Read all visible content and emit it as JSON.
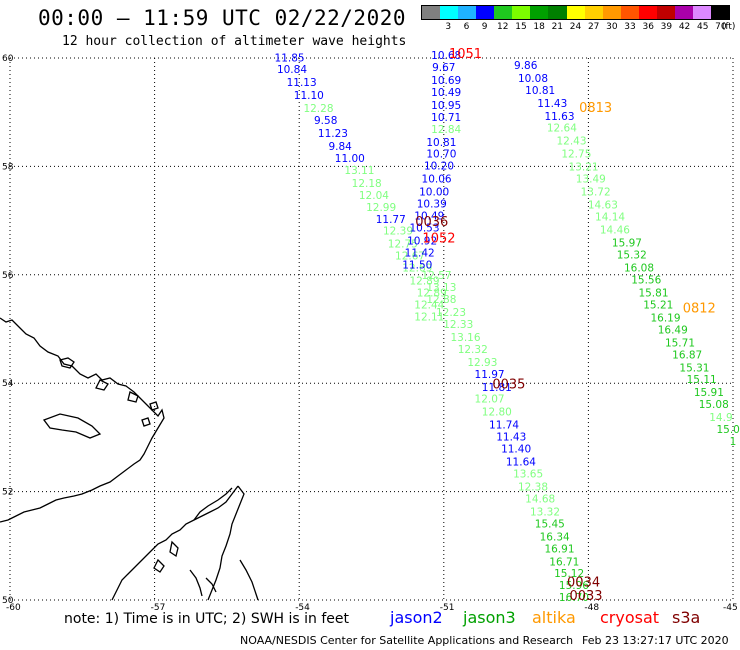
{
  "header": {
    "title": "00:00 – 11:59 UTC 02/22/2020",
    "subtitle": "12 hour collection of altimeter wave heights"
  },
  "legend": {
    "unit": "(ft)",
    "entries": [
      {
        "label": "",
        "color": "#808080"
      },
      {
        "label": "3",
        "color": "#00ffff"
      },
      {
        "label": "6",
        "color": "#1fb2ff"
      },
      {
        "label": "9",
        "color": "#0000ff"
      },
      {
        "label": "12",
        "color": "#1fc81f"
      },
      {
        "label": "15",
        "color": "#7cfc00"
      },
      {
        "label": "18",
        "color": "#00a000"
      },
      {
        "label": "21",
        "color": "#008000"
      },
      {
        "label": "24",
        "color": "#ffff00"
      },
      {
        "label": "27",
        "color": "#ffd000"
      },
      {
        "label": "30",
        "color": "#ff9900"
      },
      {
        "label": "33",
        "color": "#ff5500"
      },
      {
        "label": "36",
        "color": "#ff0000"
      },
      {
        "label": "39",
        "color": "#c00000"
      },
      {
        "label": "42",
        "color": "#aa00aa"
      },
      {
        "label": "45",
        "color": "#dd88ff"
      },
      {
        "label": "70",
        "color": "#000000"
      }
    ]
  },
  "map": {
    "lat_labels": [
      {
        "value": 60,
        "text": "60"
      },
      {
        "value": 58,
        "text": "58"
      },
      {
        "value": 56,
        "text": "56"
      },
      {
        "value": 54,
        "text": "54"
      },
      {
        "value": 52,
        "text": "52"
      },
      {
        "value": 50,
        "text": "50"
      }
    ],
    "lon_labels": [
      {
        "value": -60,
        "text": "-60"
      },
      {
        "value": -57,
        "text": "-57"
      },
      {
        "value": -54,
        "text": "-54"
      },
      {
        "value": -51,
        "text": "-51"
      },
      {
        "value": -48,
        "text": "-48"
      },
      {
        "value": -45,
        "text": "-45"
      }
    ],
    "time_labels": [
      {
        "text": "1051",
        "lat": 60.0,
        "lon": -50.55,
        "color": "#ff0000"
      },
      {
        "text": "0813",
        "lat": 59.0,
        "lon": -47.85,
        "color": "#ff9900"
      },
      {
        "text": "0036",
        "lat": 56.9,
        "lon": -51.25,
        "color": "#800000"
      },
      {
        "text": "1052",
        "lat": 56.6,
        "lon": -51.1,
        "color": "#ff0000"
      },
      {
        "text": "0812",
        "lat": 55.3,
        "lon": -45.7,
        "color": "#ff9900"
      },
      {
        "text": "0035",
        "lat": 53.9,
        "lon": -49.65,
        "color": "#800000"
      },
      {
        "text": "0034",
        "lat": 50.25,
        "lon": -48.1,
        "color": "#800000"
      },
      {
        "text": "0033",
        "lat": 50.0,
        "lon": -48.05,
        "color": "#800000"
      }
    ],
    "tracks": [
      {
        "name": "track-1",
        "points": [
          {
            "lat": 59.94,
            "lon": -54.2,
            "v": "11.85",
            "c": "#0000ff"
          },
          {
            "lat": 59.72,
            "lon": -54.15,
            "v": "10.84",
            "c": "#0000ff"
          },
          {
            "lat": 59.48,
            "lon": -53.95,
            "v": "11.13",
            "c": "#0000ff"
          },
          {
            "lat": 59.24,
            "lon": -53.8,
            "v": "11.10",
            "c": "#0000ff"
          },
          {
            "lat": 59.0,
            "lon": -53.6,
            "v": "12.28",
            "c": "#80ff80"
          },
          {
            "lat": 58.78,
            "lon": -53.45,
            "v": "9.58",
            "c": "#0000ff"
          },
          {
            "lat": 58.54,
            "lon": -53.3,
            "v": "11.23",
            "c": "#0000ff"
          },
          {
            "lat": 58.3,
            "lon": -53.15,
            "v": "9.84",
            "c": "#0000ff"
          },
          {
            "lat": 58.08,
            "lon": -52.95,
            "v": "11.00",
            "c": "#0000ff"
          },
          {
            "lat": 57.86,
            "lon": -52.75,
            "v": "13.11",
            "c": "#80ff80"
          },
          {
            "lat": 57.62,
            "lon": -52.6,
            "v": "12.18",
            "c": "#80ff80"
          },
          {
            "lat": 57.4,
            "lon": -52.45,
            "v": "12.04",
            "c": "#80ff80"
          },
          {
            "lat": 57.18,
            "lon": -52.3,
            "v": "12.99",
            "c": "#80ff80"
          },
          {
            "lat": 56.96,
            "lon": -52.1,
            "v": "11.77",
            "c": "#0000ff"
          },
          {
            "lat": 56.74,
            "lon": -51.95,
            "v": "12.39",
            "c": "#80ff80"
          },
          {
            "lat": 56.5,
            "lon": -51.85,
            "v": "12.75",
            "c": "#80ff80"
          },
          {
            "lat": 56.28,
            "lon": -51.7,
            "v": "12.67",
            "c": "#80ff80"
          },
          {
            "lat": 56.06,
            "lon": -51.55,
            "v": "12.69",
            "c": "#80ff80"
          },
          {
            "lat": 55.82,
            "lon": -51.4,
            "v": "12.89",
            "c": "#80ff80"
          },
          {
            "lat": 55.6,
            "lon": -51.25,
            "v": "12.89",
            "c": "#80ff80"
          },
          {
            "lat": 55.38,
            "lon": -51.3,
            "v": "12.44",
            "c": "#80ff80"
          },
          {
            "lat": 55.16,
            "lon": -51.3,
            "v": "12.11",
            "c": "#80ff80"
          }
        ]
      },
      {
        "name": "track-2",
        "points": [
          {
            "lat": 59.98,
            "lon": -50.95,
            "v": "10.68",
            "c": "#0000ff"
          },
          {
            "lat": 59.76,
            "lon": -51.0,
            "v": "9.67",
            "c": "#0000ff"
          },
          {
            "lat": 59.52,
            "lon": -50.95,
            "v": "10.69",
            "c": "#0000ff"
          },
          {
            "lat": 59.3,
            "lon": -50.95,
            "v": "10.49",
            "c": "#0000ff"
          },
          {
            "lat": 59.06,
            "lon": -50.95,
            "v": "10.95",
            "c": "#0000ff"
          },
          {
            "lat": 58.84,
            "lon": -50.95,
            "v": "10.71",
            "c": "#0000ff"
          },
          {
            "lat": 58.62,
            "lon": -50.95,
            "v": "12.84",
            "c": "#80ff80"
          },
          {
            "lat": 58.38,
            "lon": -51.05,
            "v": "10.81",
            "c": "#0000ff"
          },
          {
            "lat": 58.16,
            "lon": -51.05,
            "v": "10.70",
            "c": "#0000ff"
          },
          {
            "lat": 57.94,
            "lon": -51.1,
            "v": "10.20",
            "c": "#0000ff"
          },
          {
            "lat": 57.7,
            "lon": -51.15,
            "v": "10.06",
            "c": "#0000ff"
          },
          {
            "lat": 57.46,
            "lon": -51.2,
            "v": "10.00",
            "c": "#0000ff"
          },
          {
            "lat": 57.24,
            "lon": -51.25,
            "v": "10.39",
            "c": "#0000ff"
          },
          {
            "lat": 57.02,
            "lon": -51.3,
            "v": "10.49",
            "c": "#0000ff"
          },
          {
            "lat": 56.8,
            "lon": -51.4,
            "v": "10.53",
            "c": "#0000ff"
          },
          {
            "lat": 56.56,
            "lon": -51.45,
            "v": "10.92",
            "c": "#0000ff"
          },
          {
            "lat": 56.34,
            "lon": -51.5,
            "v": "11.42",
            "c": "#0000ff"
          },
          {
            "lat": 56.12,
            "lon": -51.55,
            "v": "11.50",
            "c": "#0000ff"
          },
          {
            "lat": 55.92,
            "lon": -51.15,
            "v": "12.57",
            "c": "#80ff80"
          },
          {
            "lat": 55.7,
            "lon": -51.05,
            "v": "13.13",
            "c": "#80ff80"
          },
          {
            "lat": 55.48,
            "lon": -51.05,
            "v": "12.88",
            "c": "#80ff80"
          },
          {
            "lat": 55.24,
            "lon": -50.85,
            "v": "12.23",
            "c": "#80ff80"
          },
          {
            "lat": 55.02,
            "lon": -50.7,
            "v": "12.33",
            "c": "#80ff80"
          },
          {
            "lat": 54.78,
            "lon": -50.55,
            "v": "13.16",
            "c": "#80ff80"
          },
          {
            "lat": 54.56,
            "lon": -50.4,
            "v": "12.32",
            "c": "#80ff80"
          },
          {
            "lat": 54.32,
            "lon": -50.2,
            "v": "12.93",
            "c": "#80ff80"
          },
          {
            "lat": 54.1,
            "lon": -50.05,
            "v": "11.97",
            "c": "#0000ff"
          },
          {
            "lat": 53.86,
            "lon": -49.9,
            "v": "11.81",
            "c": "#0000ff"
          },
          {
            "lat": 53.64,
            "lon": -50.05,
            "v": "12.07",
            "c": "#80ff80"
          },
          {
            "lat": 53.4,
            "lon": -49.9,
            "v": "12.80",
            "c": "#80ff80"
          },
          {
            "lat": 53.16,
            "lon": -49.75,
            "v": "11.74",
            "c": "#0000ff"
          },
          {
            "lat": 52.94,
            "lon": -49.6,
            "v": "11.43",
            "c": "#0000ff"
          },
          {
            "lat": 52.72,
            "lon": -49.5,
            "v": "11.40",
            "c": "#0000ff"
          },
          {
            "lat": 52.48,
            "lon": -49.4,
            "v": "11.64",
            "c": "#0000ff"
          },
          {
            "lat": 52.26,
            "lon": -49.25,
            "v": "13.65",
            "c": "#80ff80"
          },
          {
            "lat": 52.02,
            "lon": -49.15,
            "v": "12.38",
            "c": "#80ff80"
          },
          {
            "lat": 51.8,
            "lon": -49.0,
            "v": "14.68",
            "c": "#80ff80"
          },
          {
            "lat": 51.56,
            "lon": -48.9,
            "v": "13.32",
            "c": "#80ff80"
          },
          {
            "lat": 51.34,
            "lon": -48.8,
            "v": "15.45",
            "c": "#1fc81f"
          },
          {
            "lat": 51.1,
            "lon": -48.7,
            "v": "16.34",
            "c": "#1fc81f"
          },
          {
            "lat": 50.88,
            "lon": -48.6,
            "v": "16.91",
            "c": "#1fc81f"
          },
          {
            "lat": 50.64,
            "lon": -48.5,
            "v": "16.71",
            "c": "#1fc81f"
          },
          {
            "lat": 50.42,
            "lon": -48.4,
            "v": "15.12",
            "c": "#1fc81f"
          },
          {
            "lat": 50.2,
            "lon": -48.3,
            "v": "15.96",
            "c": "#1fc81f"
          },
          {
            "lat": 49.98,
            "lon": -48.3,
            "v": "16.70",
            "c": "#1fc81f"
          }
        ]
      },
      {
        "name": "track-3",
        "points": [
          {
            "lat": 59.8,
            "lon": -49.3,
            "v": "9.86",
            "c": "#0000ff"
          },
          {
            "lat": 59.56,
            "lon": -49.15,
            "v": "10.08",
            "c": "#0000ff"
          },
          {
            "lat": 59.34,
            "lon": -49.0,
            "v": "10.81",
            "c": "#0000ff"
          },
          {
            "lat": 59.1,
            "lon": -48.75,
            "v": "11.43",
            "c": "#0000ff"
          },
          {
            "lat": 58.86,
            "lon": -48.6,
            "v": "11.63",
            "c": "#0000ff"
          },
          {
            "lat": 58.64,
            "lon": -48.55,
            "v": "12.64",
            "c": "#80ff80"
          },
          {
            "lat": 58.4,
            "lon": -48.35,
            "v": "12.43",
            "c": "#80ff80"
          },
          {
            "lat": 58.16,
            "lon": -48.25,
            "v": "12.75",
            "c": "#80ff80"
          },
          {
            "lat": 57.92,
            "lon": -48.1,
            "v": "13.21",
            "c": "#80ff80"
          },
          {
            "lat": 57.7,
            "lon": -47.95,
            "v": "13.49",
            "c": "#80ff80"
          },
          {
            "lat": 57.46,
            "lon": -47.85,
            "v": "13.72",
            "c": "#80ff80"
          },
          {
            "lat": 57.22,
            "lon": -47.7,
            "v": "14.63",
            "c": "#80ff80"
          },
          {
            "lat": 57.0,
            "lon": -47.55,
            "v": "14.14",
            "c": "#80ff80"
          },
          {
            "lat": 56.76,
            "lon": -47.45,
            "v": "14.46",
            "c": "#80ff80"
          },
          {
            "lat": 56.52,
            "lon": -47.2,
            "v": "15.97",
            "c": "#1fc81f"
          },
          {
            "lat": 56.3,
            "lon": -47.1,
            "v": "15.32",
            "c": "#1fc81f"
          },
          {
            "lat": 56.06,
            "lon": -46.95,
            "v": "16.08",
            "c": "#1fc81f"
          },
          {
            "lat": 55.84,
            "lon": -46.8,
            "v": "15.56",
            "c": "#1fc81f"
          },
          {
            "lat": 55.6,
            "lon": -46.65,
            "v": "15.81",
            "c": "#1fc81f"
          },
          {
            "lat": 55.38,
            "lon": -46.55,
            "v": "15.21",
            "c": "#1fc81f"
          },
          {
            "lat": 55.14,
            "lon": -46.4,
            "v": "16.19",
            "c": "#1fc81f"
          },
          {
            "lat": 54.92,
            "lon": -46.25,
            "v": "16.49",
            "c": "#1fc81f"
          },
          {
            "lat": 54.68,
            "lon": -46.1,
            "v": "15.71",
            "c": "#1fc81f"
          },
          {
            "lat": 54.46,
            "lon": -45.95,
            "v": "16.87",
            "c": "#1fc81f"
          },
          {
            "lat": 54.22,
            "lon": -45.8,
            "v": "15.31",
            "c": "#1fc81f"
          },
          {
            "lat": 54.0,
            "lon": -45.65,
            "v": "15.11",
            "c": "#1fc81f"
          },
          {
            "lat": 53.76,
            "lon": -45.5,
            "v": "15.91",
            "c": "#1fc81f"
          },
          {
            "lat": 53.54,
            "lon": -45.4,
            "v": "15.08",
            "c": "#1fc81f"
          },
          {
            "lat": 53.3,
            "lon": -45.25,
            "v": "14.9",
            "c": "#80ff80"
          },
          {
            "lat": 53.08,
            "lon": -45.1,
            "v": "15.0",
            "c": "#1fc81f"
          },
          {
            "lat": 52.86,
            "lon": -45.0,
            "v": "1",
            "c": "#1fc81f"
          }
        ]
      }
    ]
  },
  "footer": {
    "note": "note: 1) Time is in UTC; 2) SWH is in feet",
    "satellites": [
      {
        "name": "jason2",
        "color": "#0000ff",
        "x": 390
      },
      {
        "name": "jason3",
        "color": "#00a000",
        "x": 463
      },
      {
        "name": "altika",
        "color": "#ff9900",
        "x": 532
      },
      {
        "name": "cryosat",
        "color": "#ff0000",
        "x": 600
      },
      {
        "name": "s3a",
        "color": "#800000",
        "x": 672
      }
    ],
    "credit": "NOAA/NESDIS Center for Satellite Applications and Research",
    "generated": "Feb 23 13:27:17 UTC 2020"
  }
}
